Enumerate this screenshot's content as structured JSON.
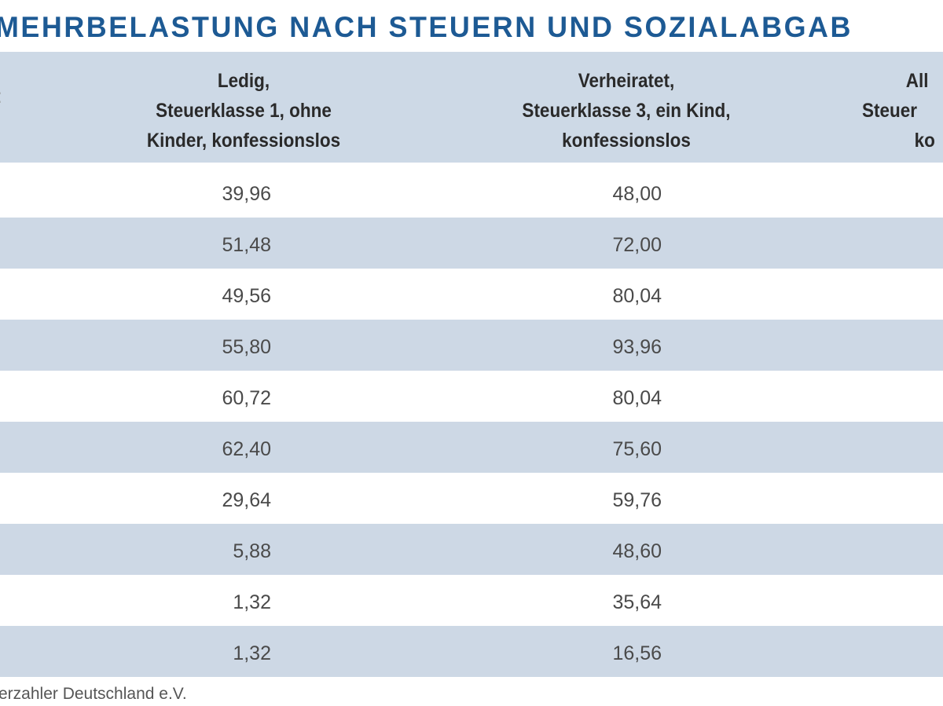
{
  "title": "MEHRBELASTUNG NACH STEUERN UND SOZIALABGAB",
  "colors": {
    "title": "#1d5a94",
    "header_bg": "#cdd9e6",
    "row_alt_bg": "#cdd8e5"
  },
  "table": {
    "headers": [
      {
        "lines": [
          ":"
        ]
      },
      {
        "lines": [
          "Ledig,",
          "Steuerklasse 1, ohne",
          "Kinder, konfessionslos"
        ]
      },
      {
        "lines": [
          "Verheiratet,",
          "Steuerklasse 3, ein Kind,",
          "konfessionslos"
        ]
      },
      {
        "lines": [
          "All",
          "Steuer",
          "ko"
        ]
      }
    ],
    "rows": [
      [
        "39,96",
        "48,00"
      ],
      [
        "51,48",
        "72,00"
      ],
      [
        "49,56",
        "80,04"
      ],
      [
        "55,80",
        "93,96"
      ],
      [
        "60,72",
        "80,04"
      ],
      [
        "62,40",
        "75,60"
      ],
      [
        "29,64",
        "59,76"
      ],
      [
        "5,88",
        "48,60"
      ],
      [
        "1,32",
        "35,64"
      ],
      [
        "1,32",
        "16,56"
      ]
    ]
  },
  "footer": "erzahler Deutschland e.V."
}
